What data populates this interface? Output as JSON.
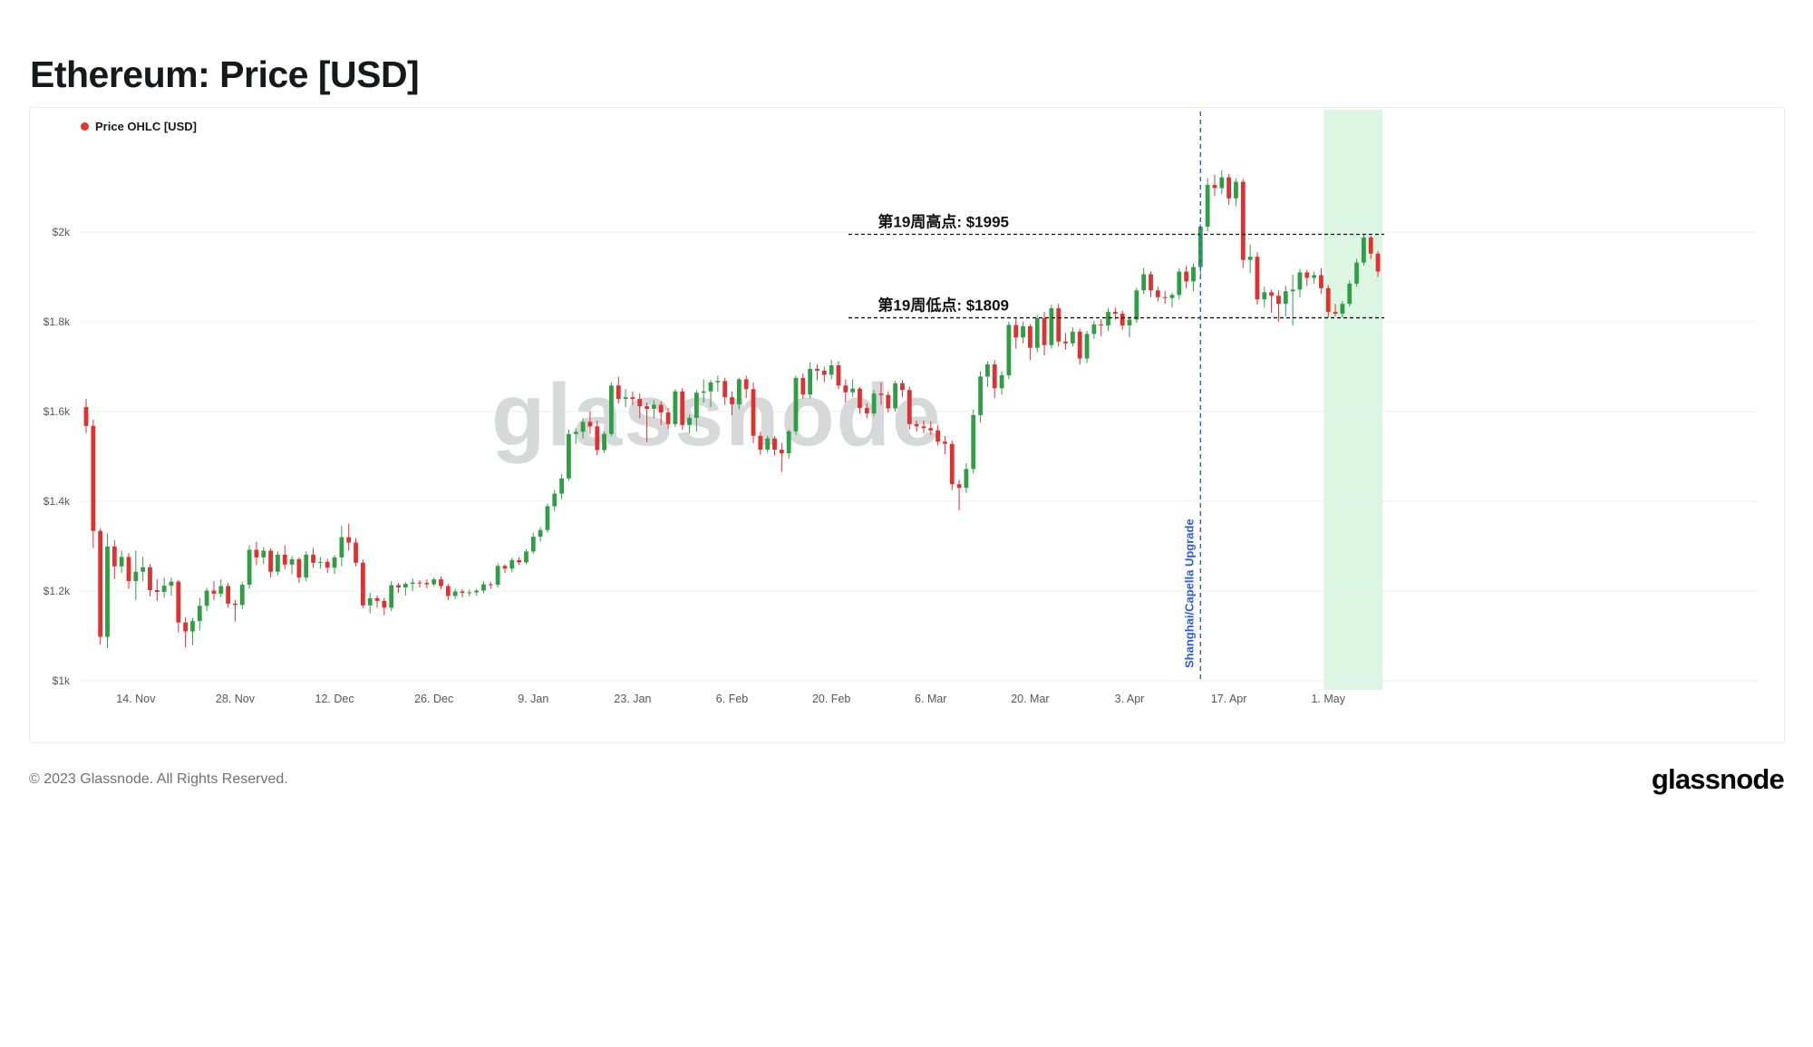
{
  "page": {
    "title": "Ethereum: Price [USD]",
    "copyright": "© 2023 Glassnode. All Rights Reserved.",
    "brand": "glassnode",
    "watermark": "glassnode"
  },
  "chart_data": {
    "type": "candlestick",
    "title": "Ethereum: Price [USD]",
    "legend": "Price OHLC [USD]",
    "legend_dot_color": "#e8332a",
    "colors": {
      "up": "#2f9e44",
      "down": "#e03131",
      "band": "#ddf6e3",
      "grid": "#ececee",
      "axis_text": "#55565c",
      "annotation": "#111111",
      "upgrade_line": "#2c5be8",
      "watermark": "#d7d8da"
    },
    "ylim": [
      1000,
      2200
    ],
    "grid": true,
    "y_ticks": [
      {
        "value": 1000,
        "label": "$1k"
      },
      {
        "value": 1200,
        "label": "$1.2k"
      },
      {
        "value": 1400,
        "label": "$1.4k"
      },
      {
        "value": 1600,
        "label": "$1.6k"
      },
      {
        "value": 1800,
        "label": "$1.8k"
      },
      {
        "value": 2000,
        "label": "$2k"
      }
    ],
    "x_ticks": [
      {
        "date": "2022-11-14",
        "label": "14. Nov"
      },
      {
        "date": "2022-11-28",
        "label": "28. Nov"
      },
      {
        "date": "2022-12-12",
        "label": "12. Dec"
      },
      {
        "date": "2022-12-26",
        "label": "26. Dec"
      },
      {
        "date": "2023-01-09",
        "label": "9. Jan"
      },
      {
        "date": "2023-01-23",
        "label": "23. Jan"
      },
      {
        "date": "2023-02-06",
        "label": "6. Feb"
      },
      {
        "date": "2023-02-20",
        "label": "20. Feb"
      },
      {
        "date": "2023-03-06",
        "label": "6. Mar"
      },
      {
        "date": "2023-03-20",
        "label": "20. Mar"
      },
      {
        "date": "2023-04-03",
        "label": "3. Apr"
      },
      {
        "date": "2023-04-17",
        "label": "17. Apr"
      },
      {
        "date": "2023-05-01",
        "label": "1. May"
      }
    ],
    "annotations": {
      "week_high": {
        "label": "第19周高点: $1995",
        "value": 1995
      },
      "week_low": {
        "label": "第19周低点: $1809",
        "value": 1809
      },
      "upgrade_event": {
        "label": "Shanghai/Capella Upgrade",
        "date": "2023-04-13"
      },
      "highlight_band": {
        "start": "2023-05-01",
        "end": "2023-05-08"
      }
    },
    "candles": [
      [
        "2022-11-07",
        1610,
        1628,
        1552,
        1568
      ],
      [
        "2022-11-08",
        1568,
        1582,
        1296,
        1334
      ],
      [
        "2022-11-09",
        1334,
        1340,
        1081,
        1098
      ],
      [
        "2022-11-10",
        1098,
        1328,
        1073,
        1299
      ],
      [
        "2022-11-11",
        1299,
        1313,
        1227,
        1255
      ],
      [
        "2022-11-12",
        1255,
        1290,
        1240,
        1276
      ],
      [
        "2022-11-13",
        1276,
        1285,
        1205,
        1222
      ],
      [
        "2022-11-14",
        1222,
        1290,
        1180,
        1243
      ],
      [
        "2022-11-15",
        1243,
        1276,
        1222,
        1253
      ],
      [
        "2022-11-16",
        1253,
        1260,
        1188,
        1202
      ],
      [
        "2022-11-17",
        1202,
        1226,
        1178,
        1198
      ],
      [
        "2022-11-18",
        1198,
        1230,
        1185,
        1212
      ],
      [
        "2022-11-19",
        1212,
        1230,
        1190,
        1221
      ],
      [
        "2022-11-20",
        1221,
        1225,
        1108,
        1130
      ],
      [
        "2022-11-21",
        1130,
        1142,
        1074,
        1110
      ],
      [
        "2022-11-22",
        1110,
        1140,
        1080,
        1133
      ],
      [
        "2022-11-23",
        1133,
        1185,
        1112,
        1167
      ],
      [
        "2022-11-24",
        1167,
        1207,
        1155,
        1201
      ],
      [
        "2022-11-25",
        1201,
        1222,
        1180,
        1194
      ],
      [
        "2022-11-26",
        1194,
        1226,
        1186,
        1211
      ],
      [
        "2022-11-27",
        1211,
        1218,
        1163,
        1172
      ],
      [
        "2022-11-28",
        1172,
        1180,
        1132,
        1169
      ],
      [
        "2022-11-29",
        1169,
        1220,
        1160,
        1214
      ],
      [
        "2022-11-30",
        1214,
        1302,
        1205,
        1292
      ],
      [
        "2022-12-01",
        1292,
        1310,
        1258,
        1275
      ],
      [
        "2022-12-02",
        1275,
        1298,
        1260,
        1290
      ],
      [
        "2022-12-03",
        1290,
        1295,
        1230,
        1243
      ],
      [
        "2022-12-04",
        1243,
        1288,
        1235,
        1281
      ],
      [
        "2022-12-05",
        1281,
        1302,
        1248,
        1259
      ],
      [
        "2022-12-06",
        1259,
        1278,
        1238,
        1271
      ],
      [
        "2022-12-07",
        1271,
        1275,
        1218,
        1230
      ],
      [
        "2022-12-08",
        1230,
        1288,
        1222,
        1281
      ],
      [
        "2022-12-09",
        1281,
        1296,
        1252,
        1263
      ],
      [
        "2022-12-10",
        1263,
        1276,
        1250,
        1265
      ],
      [
        "2022-12-11",
        1265,
        1272,
        1240,
        1252
      ],
      [
        "2022-12-12",
        1252,
        1280,
        1238,
        1275
      ],
      [
        "2022-12-13",
        1275,
        1345,
        1255,
        1320
      ],
      [
        "2022-12-14",
        1320,
        1350,
        1290,
        1308
      ],
      [
        "2022-12-15",
        1308,
        1318,
        1255,
        1263
      ],
      [
        "2022-12-16",
        1263,
        1270,
        1162,
        1168
      ],
      [
        "2022-12-17",
        1168,
        1196,
        1150,
        1184
      ],
      [
        "2022-12-18",
        1184,
        1190,
        1163,
        1178
      ],
      [
        "2022-12-19",
        1178,
        1185,
        1146,
        1163
      ],
      [
        "2022-12-20",
        1163,
        1222,
        1155,
        1213
      ],
      [
        "2022-12-21",
        1213,
        1218,
        1196,
        1208
      ],
      [
        "2022-12-22",
        1208,
        1220,
        1190,
        1216
      ],
      [
        "2022-12-23",
        1216,
        1228,
        1200,
        1219
      ],
      [
        "2022-12-24",
        1219,
        1224,
        1208,
        1218
      ],
      [
        "2022-12-25",
        1218,
        1226,
        1206,
        1215
      ],
      [
        "2022-12-26",
        1215,
        1230,
        1210,
        1226
      ],
      [
        "2022-12-27",
        1226,
        1232,
        1204,
        1211
      ],
      [
        "2022-12-28",
        1211,
        1216,
        1180,
        1189
      ],
      [
        "2022-12-29",
        1189,
        1205,
        1182,
        1199
      ],
      [
        "2022-12-30",
        1199,
        1204,
        1186,
        1196
      ],
      [
        "2022-12-31",
        1196,
        1203,
        1188,
        1197
      ],
      [
        "2023-01-01",
        1197,
        1205,
        1190,
        1201
      ],
      [
        "2023-01-02",
        1201,
        1222,
        1195,
        1215
      ],
      [
        "2023-01-03",
        1215,
        1220,
        1205,
        1214
      ],
      [
        "2023-01-04",
        1214,
        1262,
        1208,
        1256
      ],
      [
        "2023-01-05",
        1256,
        1260,
        1240,
        1250
      ],
      [
        "2023-01-06",
        1250,
        1274,
        1242,
        1269
      ],
      [
        "2023-01-07",
        1269,
        1275,
        1258,
        1264
      ],
      [
        "2023-01-08",
        1264,
        1293,
        1260,
        1288
      ],
      [
        "2023-01-09",
        1288,
        1330,
        1283,
        1321
      ],
      [
        "2023-01-10",
        1321,
        1343,
        1310,
        1336
      ],
      [
        "2023-01-11",
        1336,
        1395,
        1330,
        1389
      ],
      [
        "2023-01-12",
        1389,
        1425,
        1378,
        1417
      ],
      [
        "2023-01-13",
        1417,
        1460,
        1405,
        1451
      ],
      [
        "2023-01-14",
        1451,
        1560,
        1445,
        1550
      ],
      [
        "2023-01-15",
        1550,
        1563,
        1528,
        1555
      ],
      [
        "2023-01-16",
        1555,
        1585,
        1540,
        1577
      ],
      [
        "2023-01-17",
        1577,
        1600,
        1550,
        1567
      ],
      [
        "2023-01-18",
        1567,
        1580,
        1503,
        1514
      ],
      [
        "2023-01-19",
        1514,
        1555,
        1508,
        1550
      ],
      [
        "2023-01-20",
        1550,
        1665,
        1545,
        1658
      ],
      [
        "2023-01-21",
        1658,
        1678,
        1618,
        1628
      ],
      [
        "2023-01-22",
        1628,
        1650,
        1610,
        1632
      ],
      [
        "2023-01-23",
        1632,
        1645,
        1615,
        1628
      ],
      [
        "2023-01-24",
        1628,
        1640,
        1585,
        1612
      ],
      [
        "2023-01-25",
        1612,
        1620,
        1532,
        1606
      ],
      [
        "2023-01-26",
        1606,
        1625,
        1585,
        1615
      ],
      [
        "2023-01-27",
        1615,
        1622,
        1570,
        1598
      ],
      [
        "2023-01-28",
        1598,
        1608,
        1562,
        1572
      ],
      [
        "2023-01-29",
        1572,
        1650,
        1566,
        1645
      ],
      [
        "2023-01-30",
        1645,
        1652,
        1560,
        1570
      ],
      [
        "2023-01-31",
        1570,
        1593,
        1552,
        1586
      ],
      [
        "2023-02-01",
        1586,
        1648,
        1555,
        1642
      ],
      [
        "2023-02-02",
        1642,
        1672,
        1620,
        1645
      ],
      [
        "2023-02-03",
        1645,
        1670,
        1610,
        1665
      ],
      [
        "2023-02-04",
        1665,
        1680,
        1645,
        1668
      ],
      [
        "2023-02-05",
        1668,
        1675,
        1615,
        1632
      ],
      [
        "2023-02-06",
        1632,
        1645,
        1592,
        1616
      ],
      [
        "2023-02-07",
        1616,
        1675,
        1605,
        1672
      ],
      [
        "2023-02-08",
        1672,
        1680,
        1630,
        1650
      ],
      [
        "2023-02-09",
        1650,
        1665,
        1530,
        1546
      ],
      [
        "2023-02-10",
        1546,
        1555,
        1504,
        1515
      ],
      [
        "2023-02-11",
        1515,
        1546,
        1508,
        1540
      ],
      [
        "2023-02-12",
        1540,
        1545,
        1502,
        1515
      ],
      [
        "2023-02-13",
        1515,
        1530,
        1465,
        1507
      ],
      [
        "2023-02-14",
        1507,
        1560,
        1495,
        1556
      ],
      [
        "2023-02-15",
        1556,
        1680,
        1548,
        1675
      ],
      [
        "2023-02-16",
        1675,
        1685,
        1628,
        1638
      ],
      [
        "2023-02-17",
        1638,
        1710,
        1630,
        1695
      ],
      [
        "2023-02-18",
        1695,
        1705,
        1670,
        1691
      ],
      [
        "2023-02-19",
        1691,
        1700,
        1665,
        1682
      ],
      [
        "2023-02-20",
        1682,
        1715,
        1672,
        1703
      ],
      [
        "2023-02-21",
        1703,
        1712,
        1650,
        1658
      ],
      [
        "2023-02-22",
        1658,
        1672,
        1620,
        1643
      ],
      [
        "2023-02-23",
        1643,
        1672,
        1633,
        1651
      ],
      [
        "2023-02-24",
        1651,
        1655,
        1595,
        1608
      ],
      [
        "2023-02-25",
        1608,
        1618,
        1585,
        1596
      ],
      [
        "2023-02-26",
        1596,
        1648,
        1590,
        1640
      ],
      [
        "2023-02-27",
        1640,
        1665,
        1615,
        1637
      ],
      [
        "2023-02-28",
        1637,
        1645,
        1598,
        1607
      ],
      [
        "2023-03-01",
        1607,
        1668,
        1600,
        1663
      ],
      [
        "2023-03-02",
        1663,
        1670,
        1632,
        1648
      ],
      [
        "2023-03-03",
        1648,
        1655,
        1560,
        1572
      ],
      [
        "2023-03-04",
        1572,
        1580,
        1555,
        1567
      ],
      [
        "2023-03-05",
        1567,
        1580,
        1552,
        1563
      ],
      [
        "2023-03-06",
        1563,
        1578,
        1548,
        1558
      ],
      [
        "2023-03-07",
        1558,
        1570,
        1525,
        1533
      ],
      [
        "2023-03-08",
        1533,
        1545,
        1505,
        1528
      ],
      [
        "2023-03-09",
        1528,
        1535,
        1425,
        1438
      ],
      [
        "2023-03-10",
        1438,
        1448,
        1380,
        1430
      ],
      [
        "2023-03-11",
        1430,
        1485,
        1418,
        1472
      ],
      [
        "2023-03-12",
        1472,
        1605,
        1462,
        1592
      ],
      [
        "2023-03-13",
        1592,
        1690,
        1575,
        1678
      ],
      [
        "2023-03-14",
        1678,
        1712,
        1655,
        1705
      ],
      [
        "2023-03-15",
        1705,
        1715,
        1630,
        1652
      ],
      [
        "2023-03-16",
        1652,
        1690,
        1638,
        1681
      ],
      [
        "2023-03-17",
        1681,
        1800,
        1672,
        1793
      ],
      [
        "2023-03-18",
        1793,
        1810,
        1740,
        1765
      ],
      [
        "2023-03-19",
        1765,
        1800,
        1752,
        1790
      ],
      [
        "2023-03-20",
        1790,
        1795,
        1715,
        1742
      ],
      [
        "2023-03-21",
        1742,
        1815,
        1732,
        1808
      ],
      [
        "2023-03-22",
        1808,
        1822,
        1725,
        1748
      ],
      [
        "2023-03-23",
        1748,
        1838,
        1740,
        1830
      ],
      [
        "2023-03-24",
        1830,
        1840,
        1745,
        1756
      ],
      [
        "2023-03-25",
        1756,
        1775,
        1738,
        1752
      ],
      [
        "2023-03-26",
        1752,
        1788,
        1745,
        1778
      ],
      [
        "2023-03-27",
        1778,
        1785,
        1705,
        1718
      ],
      [
        "2023-03-28",
        1718,
        1780,
        1708,
        1773
      ],
      [
        "2023-03-29",
        1773,
        1802,
        1762,
        1794
      ],
      [
        "2023-03-30",
        1794,
        1806,
        1768,
        1792
      ],
      [
        "2023-03-31",
        1792,
        1830,
        1780,
        1822
      ],
      [
        "2023-04-01",
        1822,
        1832,
        1805,
        1818
      ],
      [
        "2023-04-02",
        1818,
        1825,
        1782,
        1792
      ],
      [
        "2023-04-03",
        1792,
        1812,
        1765,
        1805
      ],
      [
        "2023-04-04",
        1805,
        1876,
        1798,
        1870
      ],
      [
        "2023-04-05",
        1870,
        1920,
        1862,
        1906
      ],
      [
        "2023-04-06",
        1906,
        1912,
        1855,
        1870
      ],
      [
        "2023-04-07",
        1870,
        1878,
        1845,
        1855
      ],
      [
        "2023-04-08",
        1855,
        1868,
        1840,
        1853
      ],
      [
        "2023-04-09",
        1853,
        1865,
        1832,
        1860
      ],
      [
        "2023-04-10",
        1860,
        1920,
        1850,
        1912
      ],
      [
        "2023-04-11",
        1912,
        1925,
        1875,
        1890
      ],
      [
        "2023-04-12",
        1890,
        1930,
        1868,
        1922
      ],
      [
        "2023-04-13",
        1922,
        2018,
        1905,
        2012
      ],
      [
        "2023-04-14",
        2012,
        2120,
        2002,
        2105
      ],
      [
        "2023-04-15",
        2105,
        2128,
        2080,
        2098
      ],
      [
        "2023-04-16",
        2098,
        2138,
        2085,
        2122
      ],
      [
        "2023-04-17",
        2122,
        2130,
        2060,
        2075
      ],
      [
        "2023-04-18",
        2075,
        2120,
        2058,
        2112
      ],
      [
        "2023-04-19",
        2112,
        2118,
        1920,
        1938
      ],
      [
        "2023-04-20",
        1938,
        1972,
        1908,
        1945
      ],
      [
        "2023-04-21",
        1945,
        1955,
        1838,
        1850
      ],
      [
        "2023-04-22",
        1850,
        1878,
        1832,
        1866
      ],
      [
        "2023-04-23",
        1866,
        1872,
        1820,
        1858
      ],
      [
        "2023-04-24",
        1858,
        1870,
        1800,
        1840
      ],
      [
        "2023-04-25",
        1840,
        1880,
        1812,
        1868
      ],
      [
        "2023-04-26",
        1868,
        1905,
        1792,
        1872
      ],
      [
        "2023-04-27",
        1872,
        1918,
        1855,
        1910
      ],
      [
        "2023-04-28",
        1910,
        1916,
        1880,
        1898
      ],
      [
        "2023-04-29",
        1898,
        1912,
        1885,
        1904
      ],
      [
        "2023-04-30",
        1904,
        1920,
        1862,
        1875
      ],
      [
        "2023-05-01",
        1875,
        1882,
        1809,
        1822
      ],
      [
        "2023-05-02",
        1822,
        1840,
        1812,
        1818
      ],
      [
        "2023-05-03",
        1818,
        1846,
        1810,
        1840
      ],
      [
        "2023-05-04",
        1840,
        1892,
        1834,
        1885
      ],
      [
        "2023-05-05",
        1885,
        1940,
        1878,
        1932
      ],
      [
        "2023-05-06",
        1932,
        1995,
        1925,
        1988
      ],
      [
        "2023-05-07",
        1988,
        1992,
        1940,
        1952
      ],
      [
        "2023-05-08",
        1952,
        1958,
        1900,
        1912
      ]
    ]
  }
}
